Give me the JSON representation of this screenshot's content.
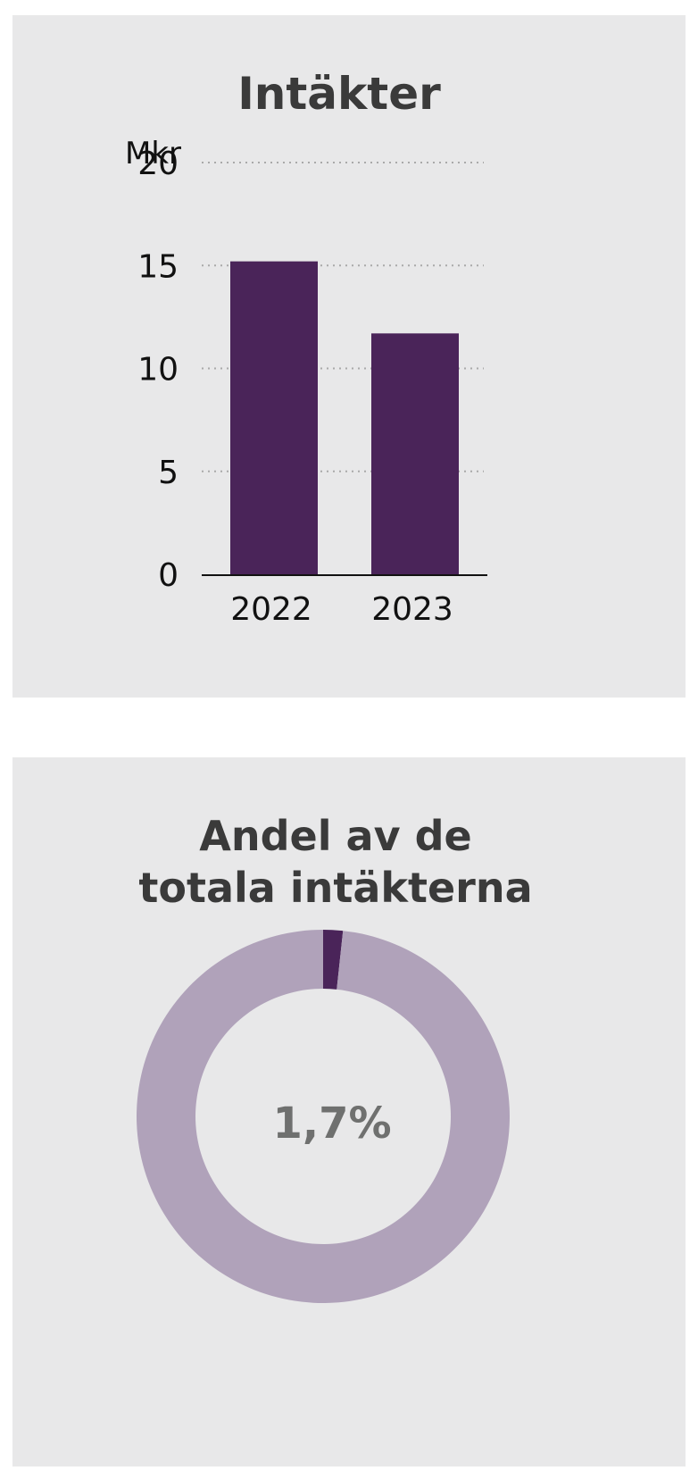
{
  "colors": {
    "panel_background": "#e8e8e9",
    "bar": "#4a2459",
    "donut_highlight": "#4a2459",
    "donut_rest": "#b0a2ba",
    "gridline": "#a9a9a9",
    "title_text": "#3a3a3a",
    "center_text": "#6f706f"
  },
  "chart_data": [
    {
      "type": "bar",
      "title": "Intäkter",
      "ylabel": "Mkr",
      "categories": [
        "2022",
        "2023"
      ],
      "values": [
        15.2,
        11.7
      ],
      "ylim": [
        0,
        20
      ],
      "yticks": [
        0,
        5,
        10,
        15,
        20
      ],
      "grid": true
    },
    {
      "type": "pie",
      "variant": "donut",
      "title_lines": [
        "Andel av de",
        "totala intäkterna"
      ],
      "center_label": "1,7%",
      "values": [
        1.7,
        98.3
      ],
      "colors": [
        "#4a2459",
        "#b0a2ba"
      ]
    }
  ]
}
